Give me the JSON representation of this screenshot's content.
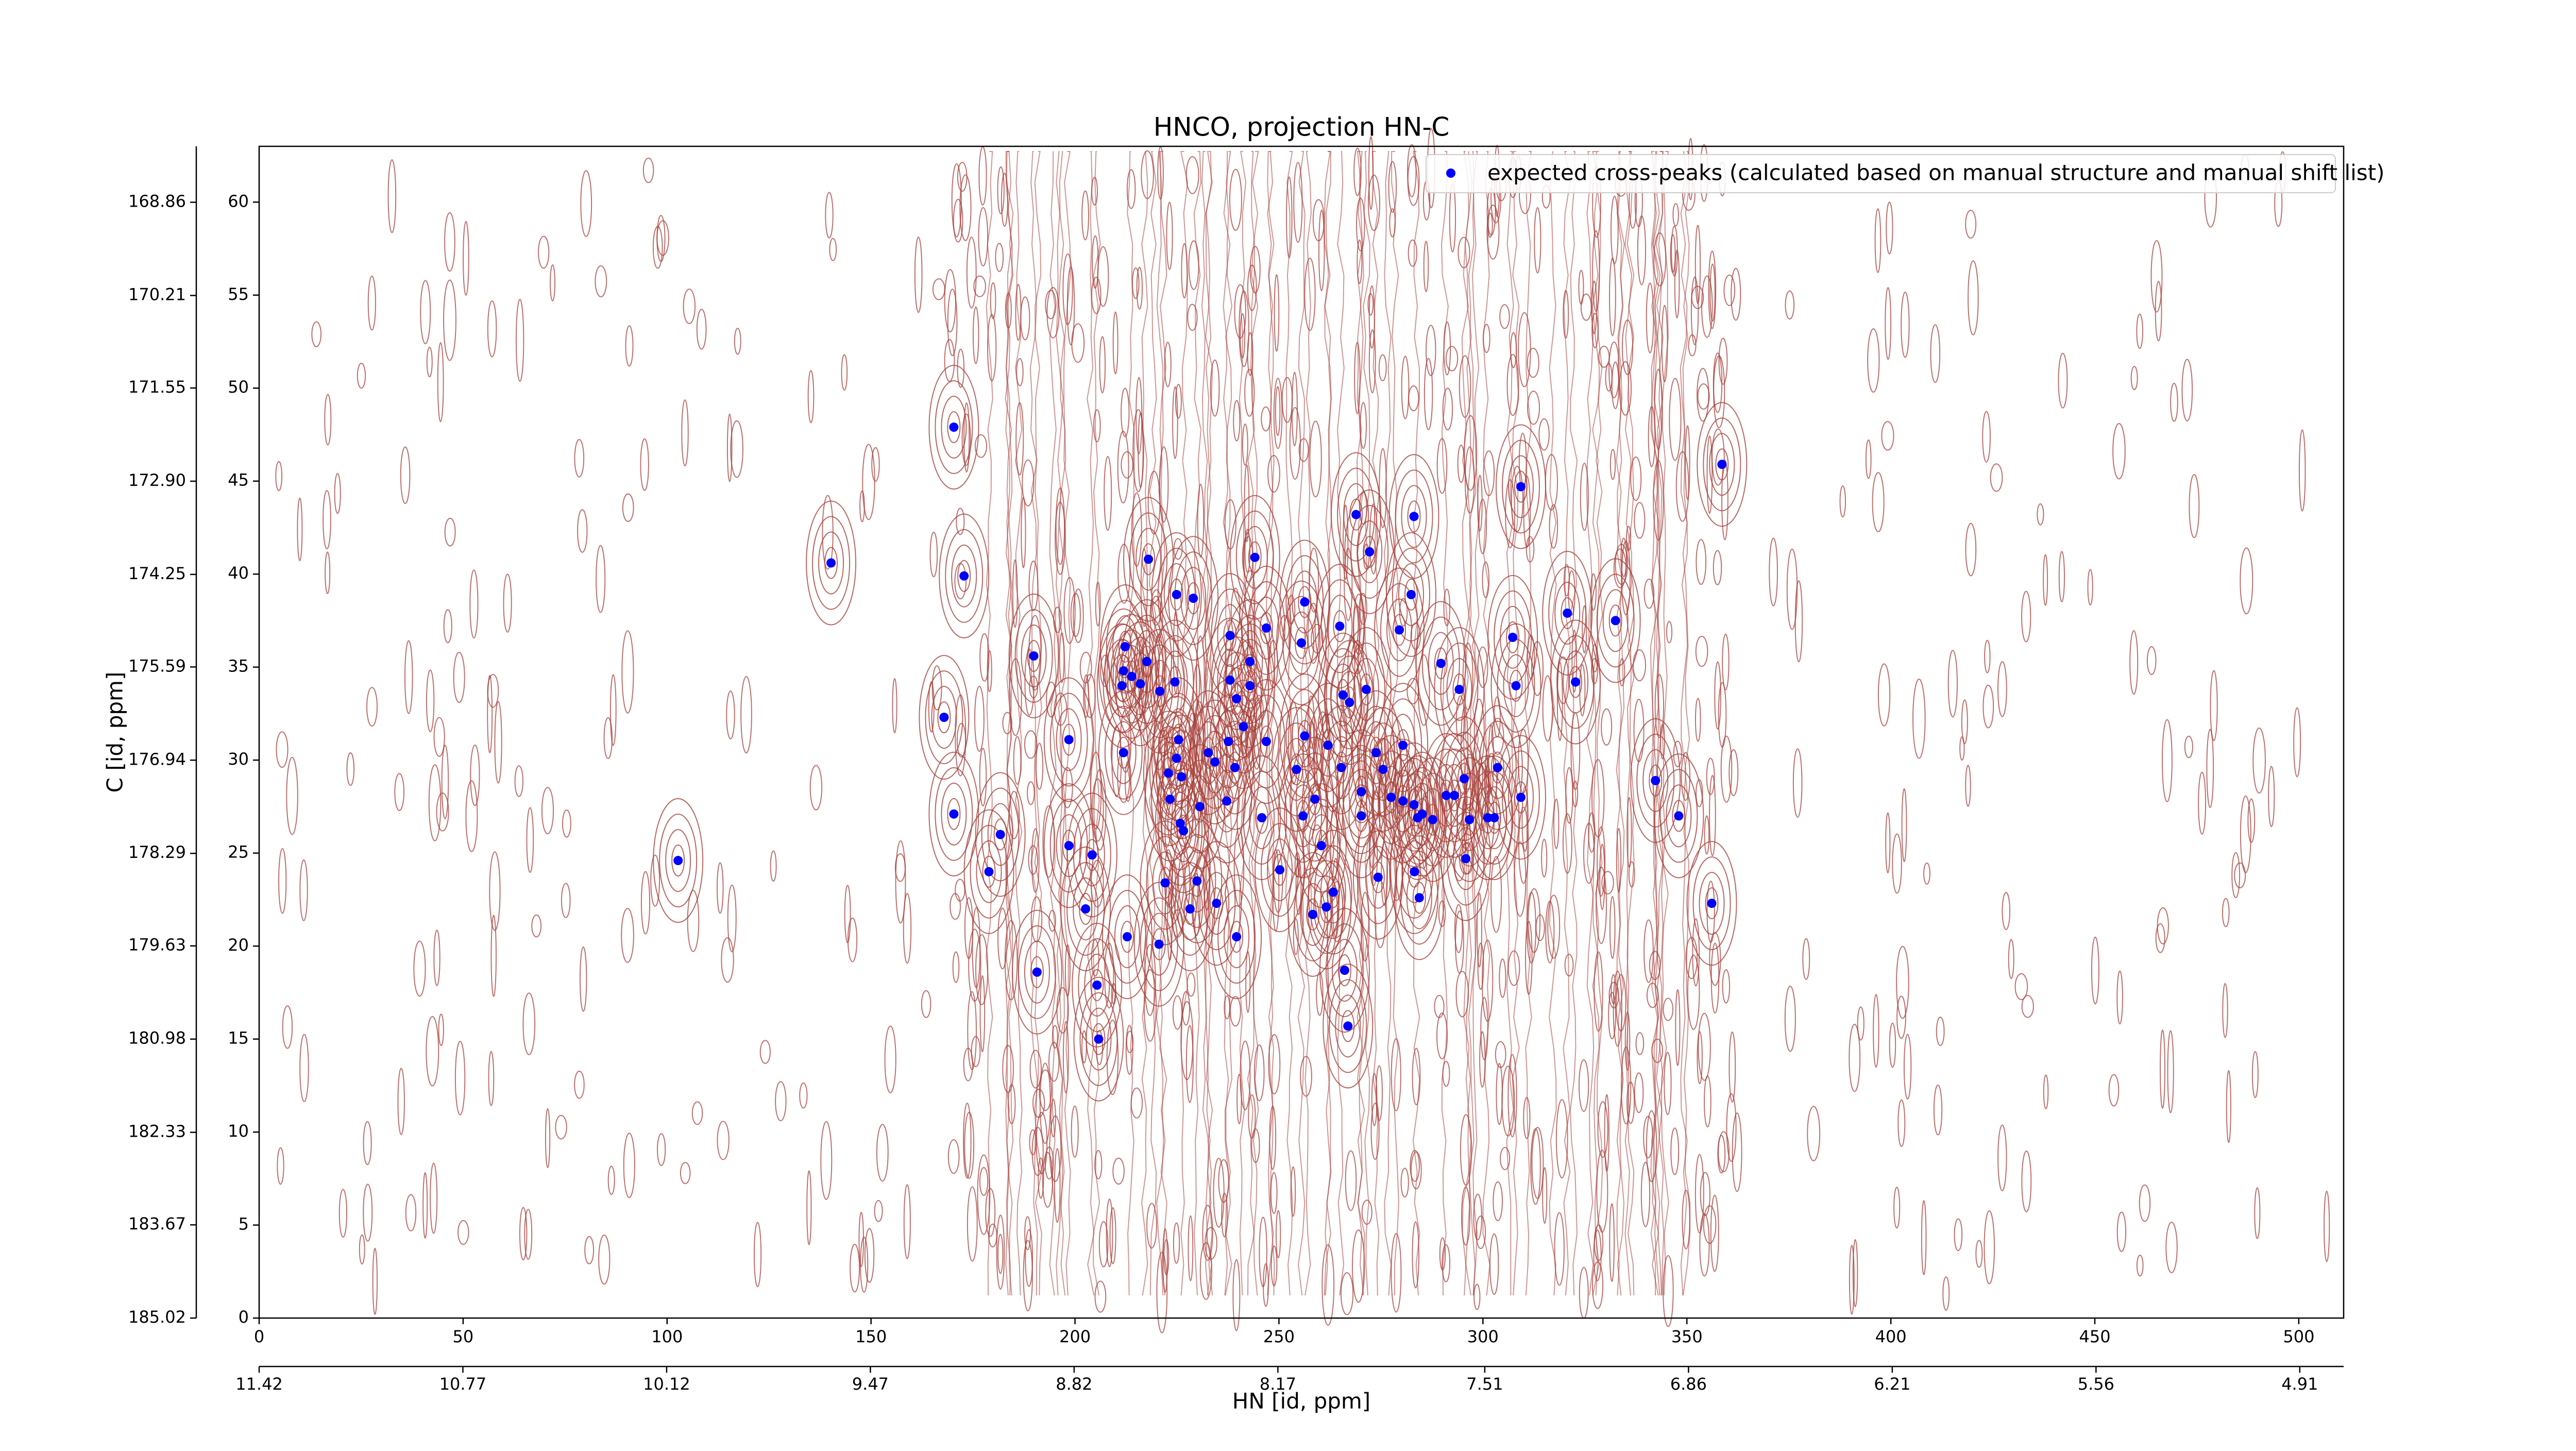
{
  "chart_data": {
    "type": "scatter",
    "title": "HNCO, projection HN-C",
    "xlabel": "HN [id, ppm]",
    "ylabel": "C [id, ppm]",
    "xlim": [
      0,
      511
    ],
    "ylim": [
      0,
      63
    ],
    "xticks": [
      0,
      50,
      100,
      150,
      200,
      250,
      300,
      350,
      400,
      450,
      500
    ],
    "yticks": [
      0,
      5,
      10,
      15,
      20,
      25,
      30,
      35,
      40,
      45,
      50,
      55,
      60
    ],
    "x2lim": [
      11.42,
      4.77
    ],
    "x2ticks": [
      11.42,
      10.77,
      10.12,
      9.47,
      8.82,
      8.17,
      7.51,
      6.86,
      6.21,
      5.56,
      4.91
    ],
    "y2lim": [
      185.02,
      168.05
    ],
    "y2ticks": [
      168.86,
      170.21,
      171.55,
      {
        "value": 172.9,
        "label": "172.90"
      },
      174.25,
      175.59,
      176.94,
      178.29,
      179.63,
      180.98,
      182.33,
      183.67,
      185.02
    ],
    "legend": "upper right",
    "contour_color": "#a8423c",
    "series": [
      {
        "name": "expected cross-peaks (calculated based on manual structure and manual shift list)",
        "color": "#0000ff",
        "x": [
          170.3,
          358.6,
          268.9,
          283.1,
          309.3,
          140.2,
          172.8,
          218.0,
          244.1,
          272.2,
          224.9,
          229.0,
          282.4,
          256.3,
          246.9,
          264.9,
          279.5,
          320.7,
          332.5,
          238.0,
          212.3,
          189.9,
          307.3,
          255.5,
          217.6,
          289.7,
          211.9,
          213.9,
          216.0,
          242.9,
          224.5,
          211.5,
          220.8,
          238.0,
          242.9,
          239.6,
          265.7,
          267.3,
          271.4,
          294.2,
          308.1,
          322.7,
          167.9,
          198.5,
          225.4,
          237.6,
          246.9,
          256.3,
          262.0,
          273.8,
          280.4,
          211.9,
          224.9,
          232.7,
          234.3,
          241.3,
          239.2,
          254.3,
          265.3,
          275.5,
          222.9,
          226.1,
          303.6,
          342.3,
          295.4,
          293.0,
          291.0,
          309.3,
          223.3,
          237.2,
          230.6,
          277.5,
          280.4,
          283.1,
          285.1,
          284.0,
          287.7,
          258.8,
          270.2,
          170.3,
          181.7,
          225.8,
          226.6,
          245.8,
          255.9,
          270.2,
          302.8,
          301.2,
          296.7,
          348.0,
          198.5,
          204.2,
          260.4,
          295.8,
          102.7,
          178.9,
          250.2,
          283.2,
          222.1,
          274.3,
          229.9,
          263.3,
          234.7,
          202.6,
          228.2,
          261.6,
          258.3,
          284.4,
          356.1,
          212.8,
          220.6,
          239.6,
          190.7,
          205.4,
          266.1,
          205.8,
          266.9
        ],
        "values": [
          47.9,
          45.9,
          43.2,
          43.1,
          44.7,
          40.6,
          39.9,
          40.8,
          40.9,
          41.2,
          38.9,
          38.7,
          38.9,
          38.5,
          37.1,
          37.2,
          37.0,
          37.9,
          37.5,
          36.7,
          36.1,
          35.6,
          36.6,
          36.3,
          35.3,
          35.2,
          34.8,
          34.5,
          34.1,
          35.3,
          34.2,
          34.0,
          33.7,
          34.3,
          34.0,
          33.3,
          33.5,
          33.1,
          33.8,
          33.8,
          34.0,
          34.2,
          32.3,
          31.1,
          31.1,
          31.0,
          31.0,
          31.3,
          30.8,
          30.4,
          30.8,
          30.4,
          30.1,
          30.4,
          29.9,
          31.8,
          29.6,
          29.5,
          29.6,
          29.5,
          29.3,
          29.1,
          29.6,
          28.9,
          29.0,
          28.1,
          28.1,
          28.0,
          27.9,
          27.8,
          27.5,
          28.0,
          27.8,
          27.6,
          27.1,
          26.9,
          26.8,
          27.9,
          28.3,
          27.1,
          26.0,
          26.6,
          26.2,
          26.9,
          27.0,
          27.0,
          26.9,
          26.9,
          26.8,
          27.0,
          25.4,
          24.9,
          25.4,
          24.7,
          24.6,
          24.0,
          24.1,
          24.0,
          23.4,
          23.7,
          23.5,
          22.9,
          22.3,
          22.0,
          22.0,
          22.1,
          21.7,
          22.6,
          22.3,
          20.5,
          20.1,
          20.5,
          18.6,
          17.9,
          18.7,
          15.0,
          15.7
        ]
      }
    ]
  }
}
